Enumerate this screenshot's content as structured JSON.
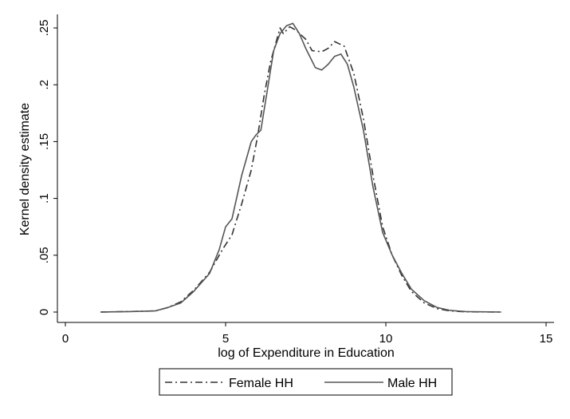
{
  "chart_data": {
    "type": "line",
    "title": "",
    "xlabel": "log of Expenditure in Education",
    "ylabel": "Kernel density estimate",
    "xlim": [
      0,
      15
    ],
    "ylim": [
      0,
      0.25
    ],
    "xticks": [
      0,
      5,
      10,
      15
    ],
    "xtick_labels": [
      "0",
      "5",
      "10",
      "15"
    ],
    "yticks": [
      0,
      0.05,
      0.1,
      0.15,
      0.2,
      0.25
    ],
    "ytick_labels": [
      "0",
      ".05",
      ".1",
      ".15",
      ".2",
      ".25"
    ],
    "grid": false,
    "legend_position": "bottom",
    "series": [
      {
        "name": "Female HH",
        "style": "dash-dot",
        "color": "#333333",
        "x": [
          1.1,
          2.0,
          2.8,
          3.2,
          3.6,
          4.0,
          4.5,
          4.9,
          5.2,
          5.5,
          5.8,
          6.0,
          6.2,
          6.4,
          6.6,
          6.7,
          6.8,
          7.0,
          7.2,
          7.5,
          7.7,
          8.0,
          8.2,
          8.4,
          8.7,
          9.0,
          9.3,
          9.6,
          9.9,
          10.2,
          10.5,
          10.8,
          11.2,
          11.6,
          12.0,
          12.5,
          13.6
        ],
        "y": [
          0.0,
          0.0005,
          0.001,
          0.004,
          0.009,
          0.019,
          0.035,
          0.055,
          0.068,
          0.095,
          0.125,
          0.155,
          0.19,
          0.22,
          0.24,
          0.25,
          0.245,
          0.251,
          0.248,
          0.24,
          0.23,
          0.229,
          0.232,
          0.238,
          0.234,
          0.21,
          0.17,
          0.12,
          0.075,
          0.05,
          0.032,
          0.018,
          0.008,
          0.003,
          0.001,
          0.0002,
          0.0
        ]
      },
      {
        "name": "Male HH",
        "style": "solid",
        "color": "#555555",
        "x": [
          1.1,
          2.0,
          2.8,
          3.2,
          3.6,
          4.0,
          4.5,
          4.8,
          5.0,
          5.2,
          5.5,
          5.8,
          5.95,
          6.1,
          6.3,
          6.5,
          6.7,
          6.9,
          7.1,
          7.3,
          7.5,
          7.8,
          8.0,
          8.2,
          8.4,
          8.6,
          8.8,
          9.0,
          9.3,
          9.6,
          9.9,
          10.2,
          10.5,
          10.8,
          11.2,
          11.6,
          12.0,
          12.5,
          13.6
        ],
        "y": [
          0.0,
          0.0004,
          0.001,
          0.004,
          0.008,
          0.018,
          0.034,
          0.055,
          0.075,
          0.082,
          0.12,
          0.15,
          0.156,
          0.16,
          0.195,
          0.23,
          0.245,
          0.252,
          0.254,
          0.245,
          0.232,
          0.215,
          0.213,
          0.218,
          0.225,
          0.227,
          0.218,
          0.198,
          0.16,
          0.11,
          0.07,
          0.05,
          0.034,
          0.02,
          0.01,
          0.004,
          0.0015,
          0.0004,
          0.0
        ]
      }
    ]
  }
}
